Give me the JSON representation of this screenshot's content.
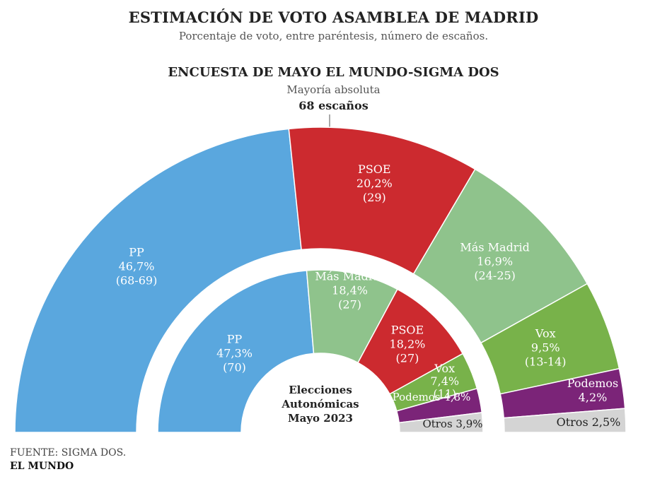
{
  "header": {
    "title": "ESTIMACIÓN DE VOTO ASAMBLEA DE MADRID",
    "subtitle": "Porcentaje de voto, entre paréntesis, número de escaños."
  },
  "survey_title": "ENCUESTA DE MAYO EL MUNDO-SIGMA DOS",
  "majority": {
    "label": "Mayoría absoluta",
    "seats_label": "68 escaños"
  },
  "center_label": [
    "Elecciones",
    "Autonómicas",
    "Mayo 2023"
  ],
  "footer": {
    "source": "FUENTE: SIGMA DOS.",
    "brand": "EL MUNDO"
  },
  "chart_data": [
    {
      "type": "pie",
      "variant": "semicircle-donut-outer",
      "title": "ENCUESTA DE MAYO EL MUNDO-SIGMA DOS",
      "series": [
        {
          "name": "PP",
          "value": 46.7,
          "value_label": "46,7%",
          "seats_label": "(68-69)",
          "color": "#5aa7de"
        },
        {
          "name": "PSOE",
          "value": 20.2,
          "value_label": "20,2%",
          "seats_label": "(29)",
          "color": "#cc2a2f"
        },
        {
          "name": "Más Madrid",
          "value": 16.9,
          "value_label": "16,9%",
          "seats_label": "(24-25)",
          "color": "#8fc38c"
        },
        {
          "name": "Vox",
          "value": 9.5,
          "value_label": "9,5%",
          "seats_label": "(13-14)",
          "color": "#78b24a"
        },
        {
          "name": "Podemos",
          "value": 4.2,
          "value_label": "4,2%",
          "seats_label": "",
          "color": "#7b2478"
        },
        {
          "name": "Otros",
          "value": 2.5,
          "value_label": "2,5%",
          "seats_label": "",
          "color": "#d4d4d4"
        }
      ]
    },
    {
      "type": "pie",
      "variant": "semicircle-donut-inner",
      "title": "Elecciones Autonómicas Mayo 2023",
      "series": [
        {
          "name": "PP",
          "value": 47.3,
          "value_label": "47,3%",
          "seats_label": "(70)",
          "color": "#5aa7de"
        },
        {
          "name": "Más Madrid",
          "value": 18.4,
          "value_label": "18,4%",
          "seats_label": "(27)",
          "color": "#8fc38c"
        },
        {
          "name": "PSOE",
          "value": 18.2,
          "value_label": "18,2%",
          "seats_label": "(27)",
          "color": "#cc2a2f"
        },
        {
          "name": "Vox",
          "value": 7.4,
          "value_label": "7,4%",
          "seats_label": "(11)",
          "color": "#78b24a"
        },
        {
          "name": "Podemos",
          "value": 4.8,
          "value_label": "4,8%",
          "seats_label": "",
          "color": "#7b2478"
        },
        {
          "name": "Otros",
          "value": 3.9,
          "value_label": "3,9%",
          "seats_label": "",
          "color": "#d4d4d4"
        }
      ]
    }
  ]
}
